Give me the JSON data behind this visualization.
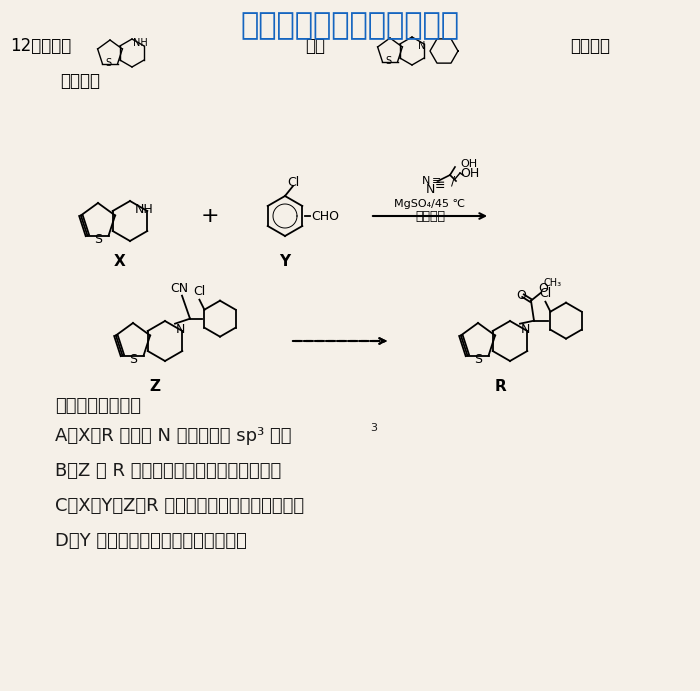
{
  "bg_color": "#f5f0e8",
  "watermark_text": "微信公众号关注：趣找答案",
  "watermark_color": "#1565C0",
  "watermark_fontsize": 22,
  "line1": "12．一种由",
  "line1_suffix": "制备",
  "line1_suffix2": "的流程如",
  "line2": "图所示：",
  "reaction_label_top": "N≡/    \\OH",
  "reaction_condition1": "MgSO₄/45 ℃",
  "reaction_condition2": "甲苯溶剂",
  "label_X": "X",
  "label_Y": "Y",
  "label_Z": "Z",
  "label_R": "R",
  "question_text": "下列说法错误的是",
  "optionA": "A．X、R 分子中 N 原子均采取 sp³ 杂化",
  "optionA_super": "3",
  "optionB": "B．Z 和 R 分子中均只含有一个手性碳原子",
  "optionC": "C．X、Y、Z、R 均含苯环且属于芳香族化合物",
  "optionD": "D．Y 分子中所有原子可能在同一平面",
  "text_color": "#1a1a1a",
  "font_size_main": 13,
  "font_size_options": 13
}
